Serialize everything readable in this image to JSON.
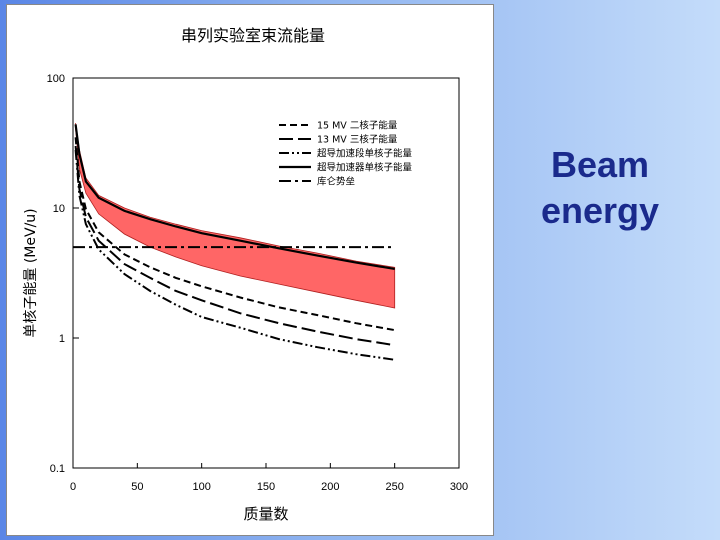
{
  "slide": {
    "caption": "Beam energy"
  },
  "colors": {
    "band_fill": "#ff6666",
    "band_edge": "#b02020",
    "line": "#000000",
    "caption": "#1a2a8c"
  },
  "chart_data": {
    "type": "line",
    "title": "串列实验室束流能量",
    "xlabel": "质量数",
    "ylabel": "单核子能量 (MeV/u)",
    "xlim": [
      0,
      300
    ],
    "ylim": [
      0.1,
      100
    ],
    "yscale": "log",
    "xticks": [
      0,
      50,
      100,
      150,
      200,
      250,
      300
    ],
    "xtick_labels": [
      "0",
      "50",
      "100",
      "150",
      "200",
      "250",
      "300"
    ],
    "yticks": [
      0.1,
      1,
      10,
      100
    ],
    "ytick_labels": [
      "0.1",
      "1",
      "10",
      "100"
    ],
    "grid": false,
    "legend_position": "top-right",
    "band": {
      "x": [
        2,
        5,
        10,
        20,
        40,
        60,
        80,
        100,
        130,
        160,
        190,
        220,
        250
      ],
      "upper": [
        45,
        28,
        17,
        12.5,
        10,
        8.5,
        7.5,
        6.7,
        5.9,
        5.1,
        4.5,
        3.9,
        3.5
      ],
      "lower": [
        40,
        20,
        13,
        9,
        6.3,
        5,
        4.2,
        3.6,
        3.0,
        2.6,
        2.25,
        1.95,
        1.7
      ]
    },
    "series": [
      {
        "name": "15 MV 二核子能量",
        "style": "dashed",
        "x": [
          2,
          5,
          10,
          20,
          40,
          60,
          80,
          100,
          130,
          160,
          190,
          220,
          250
        ],
        "y": [
          35,
          16,
          9.8,
          6.5,
          4.4,
          3.5,
          2.9,
          2.5,
          2.05,
          1.72,
          1.5,
          1.3,
          1.15
        ]
      },
      {
        "name": "13 MV 三核子能量",
        "style": "long-dash",
        "x": [
          2,
          5,
          10,
          20,
          40,
          60,
          80,
          100,
          130,
          160,
          190,
          220,
          250
        ],
        "y": [
          30,
          14,
          8.5,
          5.6,
          3.7,
          2.9,
          2.3,
          1.95,
          1.55,
          1.3,
          1.12,
          0.98,
          0.88
        ]
      },
      {
        "name": "超导加速段单核子能量",
        "style": "dash-dot-dot",
        "x": [
          2,
          5,
          10,
          20,
          40,
          60,
          80,
          100,
          130,
          160,
          190,
          220,
          250
        ],
        "y": [
          28,
          12.5,
          7.5,
          4.8,
          3.1,
          2.3,
          1.8,
          1.45,
          1.2,
          0.98,
          0.85,
          0.75,
          0.68
        ]
      },
      {
        "name": "超导加速器单核子能量",
        "style": "solid",
        "x": [
          2,
          5,
          10,
          20,
          40,
          60,
          80,
          100,
          130,
          160,
          190,
          220,
          250
        ],
        "y": [
          44,
          26,
          16,
          12,
          9.5,
          8.2,
          7.2,
          6.4,
          5.6,
          4.9,
          4.3,
          3.8,
          3.4
        ]
      },
      {
        "name": "库仑势垒",
        "style": "dash-dot",
        "x": [
          0,
          250
        ],
        "y": [
          5,
          5
        ]
      }
    ]
  }
}
